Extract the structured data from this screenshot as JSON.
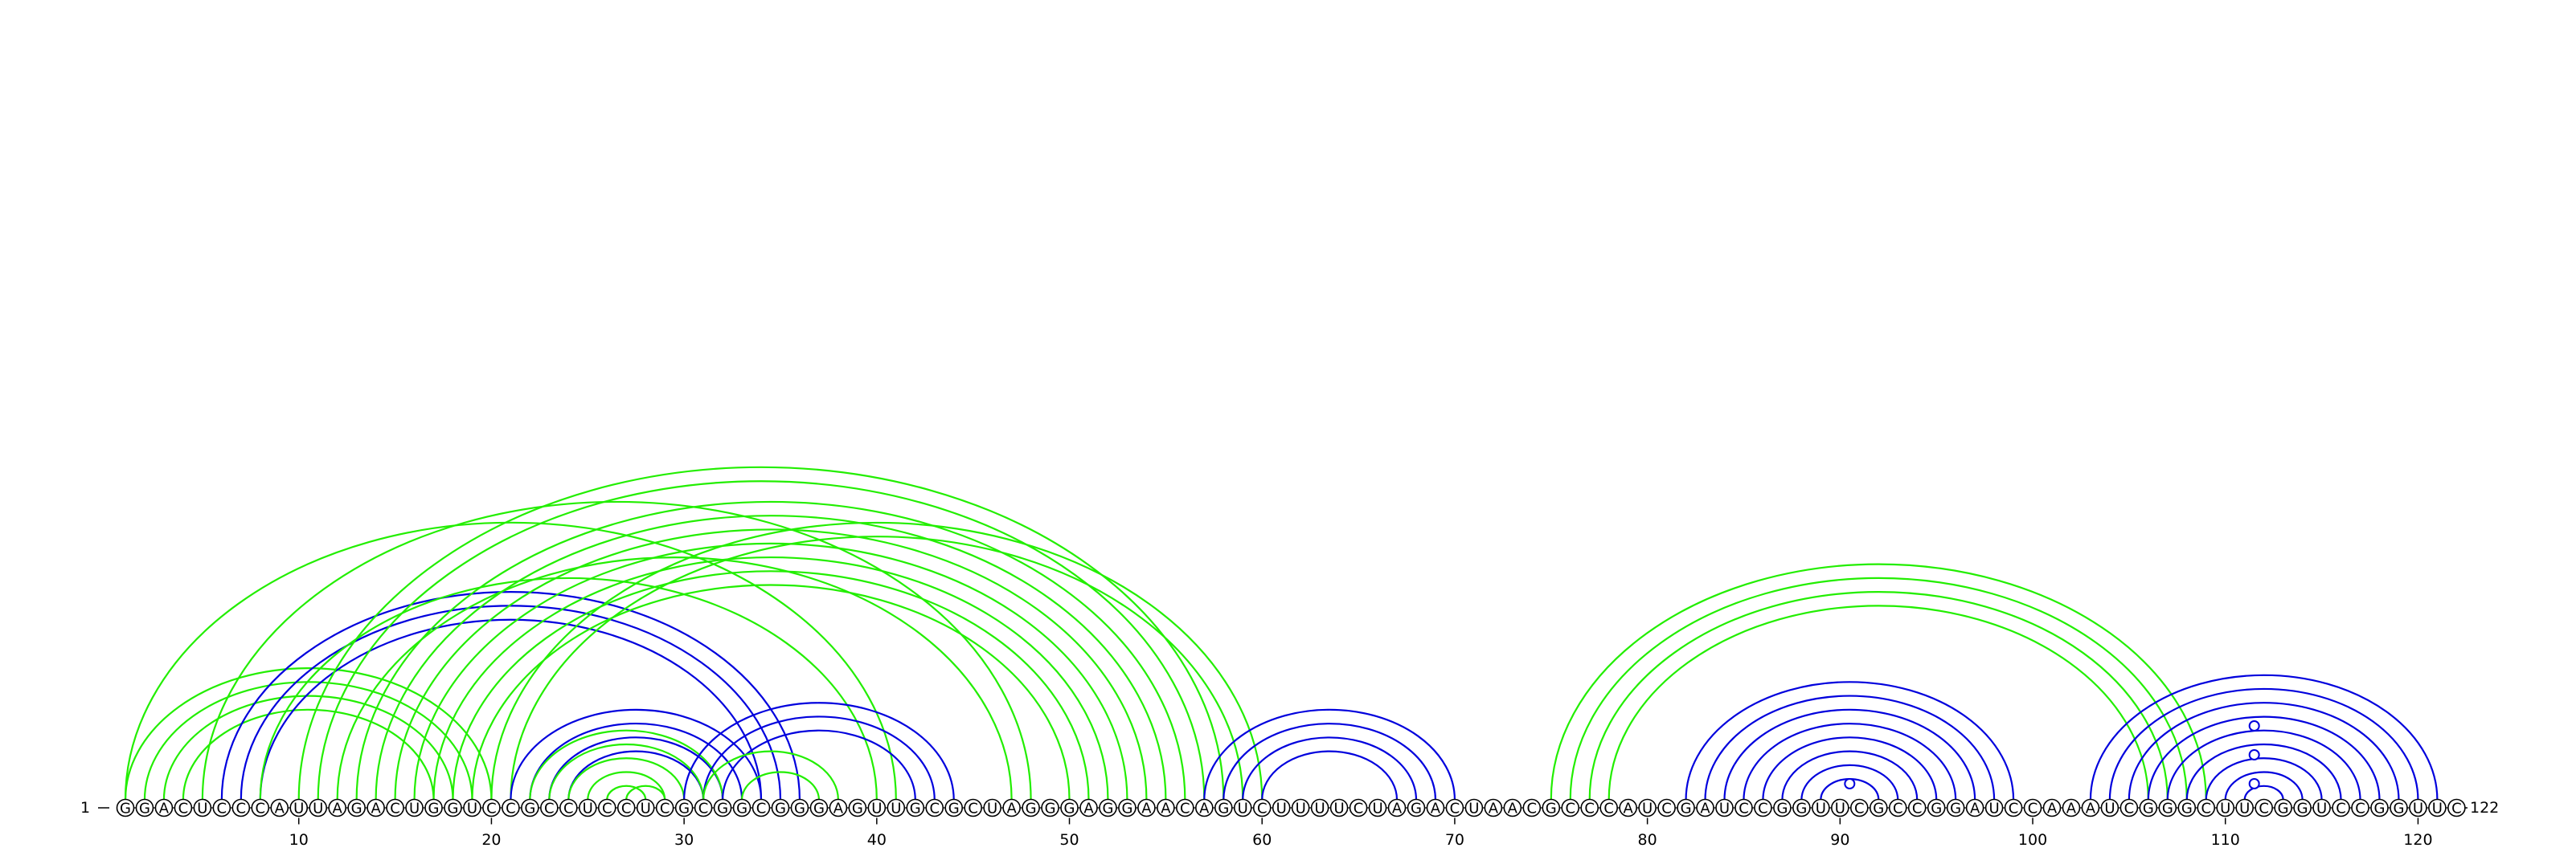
{
  "sequence": "GGACUCCCAUUAGACUGGUCCGCCUCCUCGCGGCGGGAGUUGCGCUAGGGAGGAACAGUCUUUUCUAGACUAACGCCCAUCGAUCCGGUUCGCCGGAUCCAAAUCGGGCUUCGGUCCGGUUC",
  "start_label": "1",
  "end_label": "122",
  "ticks": [
    10,
    20,
    30,
    40,
    50,
    60,
    70,
    80,
    90,
    100,
    110,
    120
  ],
  "colors": {
    "green": "#22ee00",
    "blue": "#0000dd"
  },
  "arcs": [
    {
      "i": 1,
      "j": 20,
      "c": "green"
    },
    {
      "i": 2,
      "j": 19,
      "c": "green"
    },
    {
      "i": 3,
      "j": 18,
      "c": "green"
    },
    {
      "i": 4,
      "j": 17,
      "c": "green"
    },
    {
      "i": 1,
      "j": 41,
      "c": "green"
    },
    {
      "i": 5,
      "j": 48,
      "c": "green"
    },
    {
      "i": 6,
      "j": 36,
      "c": "blue"
    },
    {
      "i": 7,
      "j": 35,
      "c": "blue"
    },
    {
      "i": 8,
      "j": 34,
      "c": "blue"
    },
    {
      "i": 8,
      "j": 40,
      "c": "green"
    },
    {
      "i": 12,
      "j": 47,
      "c": "green"
    },
    {
      "i": 13,
      "j": 56,
      "c": "green"
    },
    {
      "i": 14,
      "j": 55,
      "c": "green"
    },
    {
      "i": 15,
      "j": 54,
      "c": "green"
    },
    {
      "i": 16,
      "j": 53,
      "c": "green"
    },
    {
      "i": 17,
      "j": 52,
      "c": "green"
    },
    {
      "i": 18,
      "j": 51,
      "c": "green"
    },
    {
      "i": 19,
      "j": 50,
      "c": "green"
    },
    {
      "i": 10,
      "j": 58,
      "c": "green"
    },
    {
      "i": 11,
      "j": 57,
      "c": "green"
    },
    {
      "i": 20,
      "j": 60,
      "c": "green"
    },
    {
      "i": 21,
      "j": 59,
      "c": "green"
    },
    {
      "i": 21,
      "j": 34,
      "c": "blue"
    },
    {
      "i": 22,
      "j": 33,
      "c": "blue"
    },
    {
      "i": 23,
      "j": 32,
      "c": "blue"
    },
    {
      "i": 24,
      "j": 31,
      "c": "blue"
    },
    {
      "i": 22,
      "j": 32,
      "c": "green"
    },
    {
      "i": 23,
      "j": 31,
      "c": "green"
    },
    {
      "i": 24,
      "j": 30,
      "c": "green"
    },
    {
      "i": 25,
      "j": 29,
      "c": "green"
    },
    {
      "i": 26,
      "j": 28,
      "c": "green"
    },
    {
      "i": 29,
      "j": 27,
      "c": "green"
    },
    {
      "i": 30,
      "j": 44,
      "c": "blue"
    },
    {
      "i": 31,
      "j": 43,
      "c": "blue"
    },
    {
      "i": 32,
      "j": 42,
      "c": "blue"
    },
    {
      "i": 31,
      "j": 38,
      "c": "green"
    },
    {
      "i": 33,
      "j": 37,
      "c": "green"
    },
    {
      "i": 57,
      "j": 70,
      "c": "blue"
    },
    {
      "i": 58,
      "j": 69,
      "c": "blue"
    },
    {
      "i": 59,
      "j": 68,
      "c": "blue"
    },
    {
      "i": 60,
      "j": 67,
      "c": "blue"
    },
    {
      "i": 75,
      "j": 109,
      "c": "green"
    },
    {
      "i": 76,
      "j": 108,
      "c": "green"
    },
    {
      "i": 77,
      "j": 107,
      "c": "green"
    },
    {
      "i": 78,
      "j": 106,
      "c": "green"
    },
    {
      "i": 82,
      "j": 99,
      "c": "blue"
    },
    {
      "i": 83,
      "j": 98,
      "c": "blue"
    },
    {
      "i": 84,
      "j": 97,
      "c": "blue"
    },
    {
      "i": 85,
      "j": 96,
      "c": "blue"
    },
    {
      "i": 86,
      "j": 95,
      "c": "blue"
    },
    {
      "i": 87,
      "j": 94,
      "c": "blue"
    },
    {
      "i": 88,
      "j": 93,
      "c": "blue"
    },
    {
      "i": 89,
      "j": 92,
      "c": "blue"
    },
    {
      "i": 103,
      "j": 121,
      "c": "blue"
    },
    {
      "i": 104,
      "j": 120,
      "c": "blue"
    },
    {
      "i": 105,
      "j": 119,
      "c": "blue"
    },
    {
      "i": 106,
      "j": 118,
      "c": "blue"
    },
    {
      "i": 107,
      "j": 117,
      "c": "blue"
    },
    {
      "i": 108,
      "j": 116,
      "c": "blue"
    },
    {
      "i": 109,
      "j": 115,
      "c": "blue"
    },
    {
      "i": 110,
      "j": 114,
      "c": "blue"
    },
    {
      "i": 111,
      "j": 113,
      "c": "blue"
    }
  ],
  "markers": [
    {
      "at": 90.5,
      "level": 1,
      "c": "blue"
    },
    {
      "at": 111.5,
      "level": 1,
      "c": "blue"
    },
    {
      "at": 111.5,
      "level": 3,
      "c": "blue"
    },
    {
      "at": 111.5,
      "level": 5,
      "c": "blue"
    }
  ]
}
